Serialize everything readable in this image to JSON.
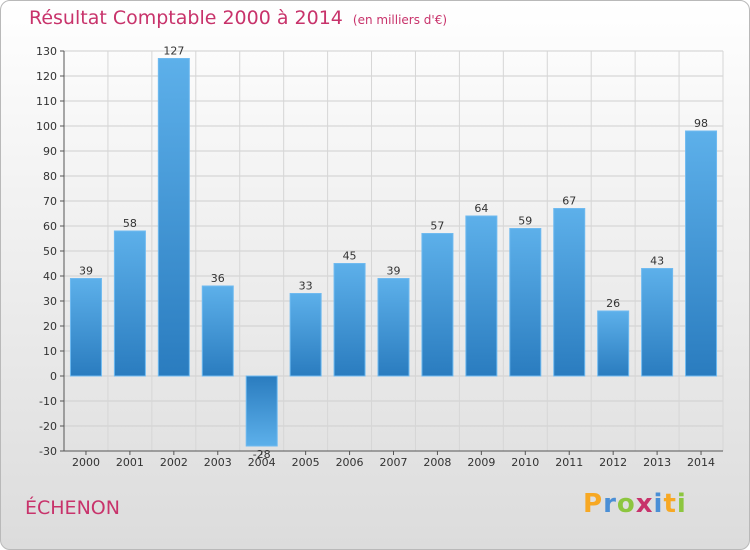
{
  "header": {
    "title": "Résultat Comptable 2000 à 2014",
    "unit": "(en milliers d'€)"
  },
  "commune": "ÉCHENON",
  "logo": {
    "letters": [
      "P",
      "r",
      "o",
      "x",
      "i",
      "t",
      "i"
    ],
    "colors": [
      "#f7a823",
      "#4a8fd6",
      "#8dc63f",
      "#c8336b",
      "#4a8fd6",
      "#f7a823",
      "#8dc63f"
    ]
  },
  "chart_data": {
    "type": "bar",
    "title": "Résultat Comptable 2000 à 2014",
    "subtitle": "(en milliers d'€)",
    "categories": [
      "2000",
      "2001",
      "2002",
      "2003",
      "2004",
      "2005",
      "2006",
      "2007",
      "2008",
      "2009",
      "2010",
      "2011",
      "2012",
      "2013",
      "2014"
    ],
    "values": [
      39,
      58,
      127,
      36,
      -28,
      33,
      45,
      39,
      57,
      64,
      59,
      67,
      26,
      43,
      98
    ],
    "value_labels": [
      "39",
      "58",
      "127",
      "36",
      "-28",
      "33",
      "45",
      "39",
      "57",
      "64",
      "59",
      "67",
      "26",
      "43",
      "98"
    ],
    "ylim": [
      -30,
      130
    ],
    "yticks": [
      -30,
      -20,
      -10,
      0,
      10,
      20,
      30,
      40,
      50,
      60,
      70,
      80,
      90,
      100,
      110,
      120,
      130
    ],
    "grid": true,
    "bar_color": "#4fa3e0",
    "bar_color_dark": "#2b7ec0"
  }
}
